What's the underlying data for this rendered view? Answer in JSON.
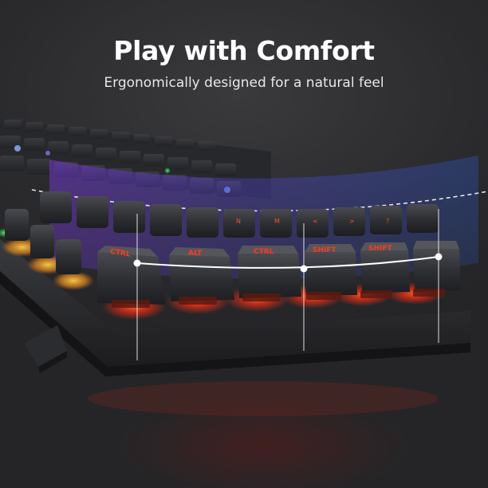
{
  "headline": "Play with Comfort",
  "subline": "Ergonomically designed for a natural feel",
  "keycap_legends": [
    "CTRL",
    "ALT",
    "CTRL",
    "SHIFT",
    "SHIFT"
  ],
  "colors": {
    "background": "#2a2a2c",
    "backlight_red": "#ff3a1e",
    "backlight_orange": "#ffae2a",
    "arc_overlay_purple": "#7a3cff",
    "arc_overlay_blue": "#3a6bff",
    "curve_line": "#ffffff"
  }
}
